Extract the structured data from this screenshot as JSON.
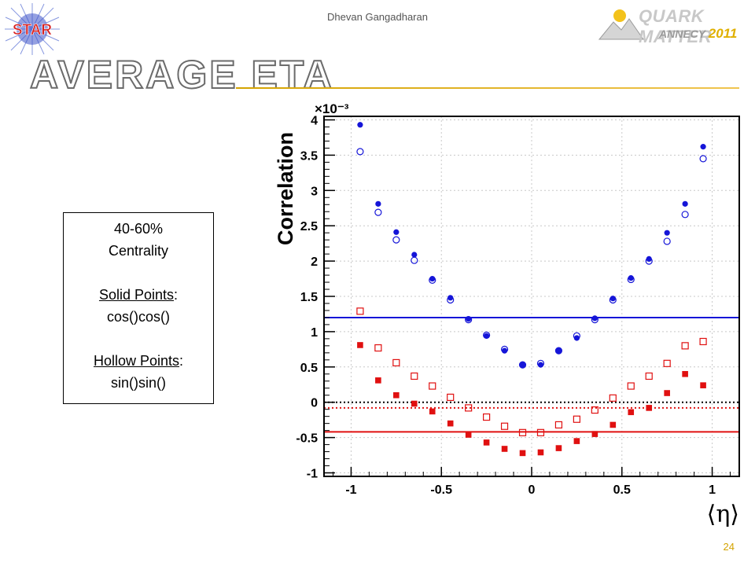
{
  "header": {
    "author": "Dhevan Gangadharan",
    "title": "AVERAGE ETA",
    "logo_left_text": "STAR",
    "logo_right_title": "QUARK MATTER",
    "logo_right_place": "ANNECY",
    "logo_right_year": "2011",
    "accent_color": "#d4a300"
  },
  "info_box": {
    "line1": "40-60%",
    "line2": "Centrality",
    "solid_label": "Solid Points",
    "solid_sep": ":",
    "solid_formula": "cos()cos()",
    "hollow_label": "Hollow Points",
    "hollow_sep": ":",
    "hollow_formula": "sin()sin()"
  },
  "page_number": "24",
  "chart_data": {
    "type": "scatter",
    "title": "",
    "xlabel": "⟨η⟩",
    "ylabel": "Correlation",
    "y_exponent": "×10⁻³",
    "xlim": [
      -1.15,
      1.15
    ],
    "ylim": [
      -1.05,
      4.05
    ],
    "x_ticks": [
      -1,
      -0.5,
      0,
      0.5,
      1
    ],
    "x_tick_labels": [
      "-1",
      "-0.5",
      "0",
      "0.5",
      "1"
    ],
    "y_ticks": [
      -1,
      -0.5,
      0,
      0.5,
      1,
      1.5,
      2,
      2.5,
      3,
      3.5,
      4
    ],
    "y_tick_labels": [
      "-1",
      "-0.5",
      "0",
      "0.5",
      "1",
      "1.5",
      "2",
      "2.5",
      "3",
      "3.5",
      "4"
    ],
    "x": [
      -0.95,
      -0.85,
      -0.75,
      -0.65,
      -0.55,
      -0.45,
      -0.35,
      -0.25,
      -0.15,
      -0.05,
      0.05,
      0.15,
      0.25,
      0.35,
      0.45,
      0.55,
      0.65,
      0.75,
      0.85,
      0.95
    ],
    "series": [
      {
        "marker": "filled-circle",
        "color": "#1515d8",
        "values": [
          3.93,
          2.81,
          2.41,
          2.09,
          1.75,
          1.48,
          1.18,
          0.94,
          0.73,
          0.53,
          0.53,
          0.73,
          0.91,
          1.19,
          1.47,
          1.76,
          2.03,
          2.4,
          2.81,
          3.62
        ]
      },
      {
        "marker": "open-circle",
        "color": "#1515d8",
        "values": [
          3.55,
          2.69,
          2.3,
          2.01,
          1.73,
          1.45,
          1.17,
          0.95,
          0.75,
          0.53,
          0.55,
          0.73,
          0.94,
          1.17,
          1.45,
          1.74,
          2.0,
          2.28,
          2.66,
          3.45
        ]
      },
      {
        "marker": "filled-square",
        "color": "#e01010",
        "values": [
          0.81,
          0.31,
          0.1,
          -0.02,
          -0.13,
          -0.3,
          -0.46,
          -0.57,
          -0.66,
          -0.72,
          -0.71,
          -0.65,
          -0.55,
          -0.45,
          -0.32,
          -0.14,
          -0.08,
          0.13,
          0.4,
          0.24
        ]
      },
      {
        "marker": "open-square",
        "color": "#e01010",
        "values": [
          1.29,
          0.77,
          0.56,
          0.37,
          0.23,
          0.07,
          -0.08,
          -0.21,
          -0.34,
          -0.43,
          -0.43,
          -0.32,
          -0.24,
          -0.11,
          0.06,
          0.23,
          0.37,
          0.55,
          0.8,
          0.86
        ]
      }
    ],
    "reference_lines": [
      {
        "y": 1.2,
        "color": "#1515d8",
        "style": "solid"
      },
      {
        "y": 0.0,
        "color": "#000000",
        "style": "dotted"
      },
      {
        "y": -0.08,
        "color": "#e01010",
        "style": "dotted"
      },
      {
        "y": -0.42,
        "color": "#e01010",
        "style": "solid"
      }
    ],
    "grid": true,
    "legend": "none"
  }
}
